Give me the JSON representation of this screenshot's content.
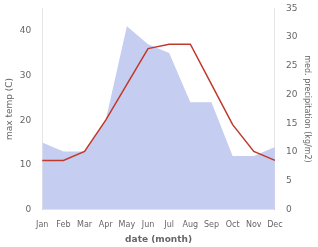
{
  "chart_data": {
    "type": "line",
    "xlabel": "date (month)",
    "ylabel": "max temp (C)",
    "y2label": "med. precipitation (kg/m2)",
    "categories": [
      "Jan",
      "Feb",
      "Mar",
      "Apr",
      "May",
      "Jun",
      "Jul",
      "Aug",
      "Sep",
      "Oct",
      "Nov",
      "Dec"
    ],
    "series": [
      {
        "type": "area",
        "color": "#c5cdf0",
        "values": [
          15,
          13,
          13,
          20,
          41,
          37,
          35,
          24,
          24,
          12,
          12,
          14
        ]
      },
      {
        "type": "line",
        "color": "#c0392b",
        "values": [
          11,
          11,
          13,
          20,
          28,
          36,
          37,
          37,
          28,
          19,
          13,
          11
        ]
      }
    ],
    "ylim": [
      0,
      45
    ],
    "yticks": [
      0,
      10,
      20,
      30,
      40
    ],
    "y2lim": [
      0,
      35
    ],
    "y2ticks": [
      0,
      5,
      10,
      15,
      20,
      25,
      30,
      35
    ],
    "grid": false
  }
}
